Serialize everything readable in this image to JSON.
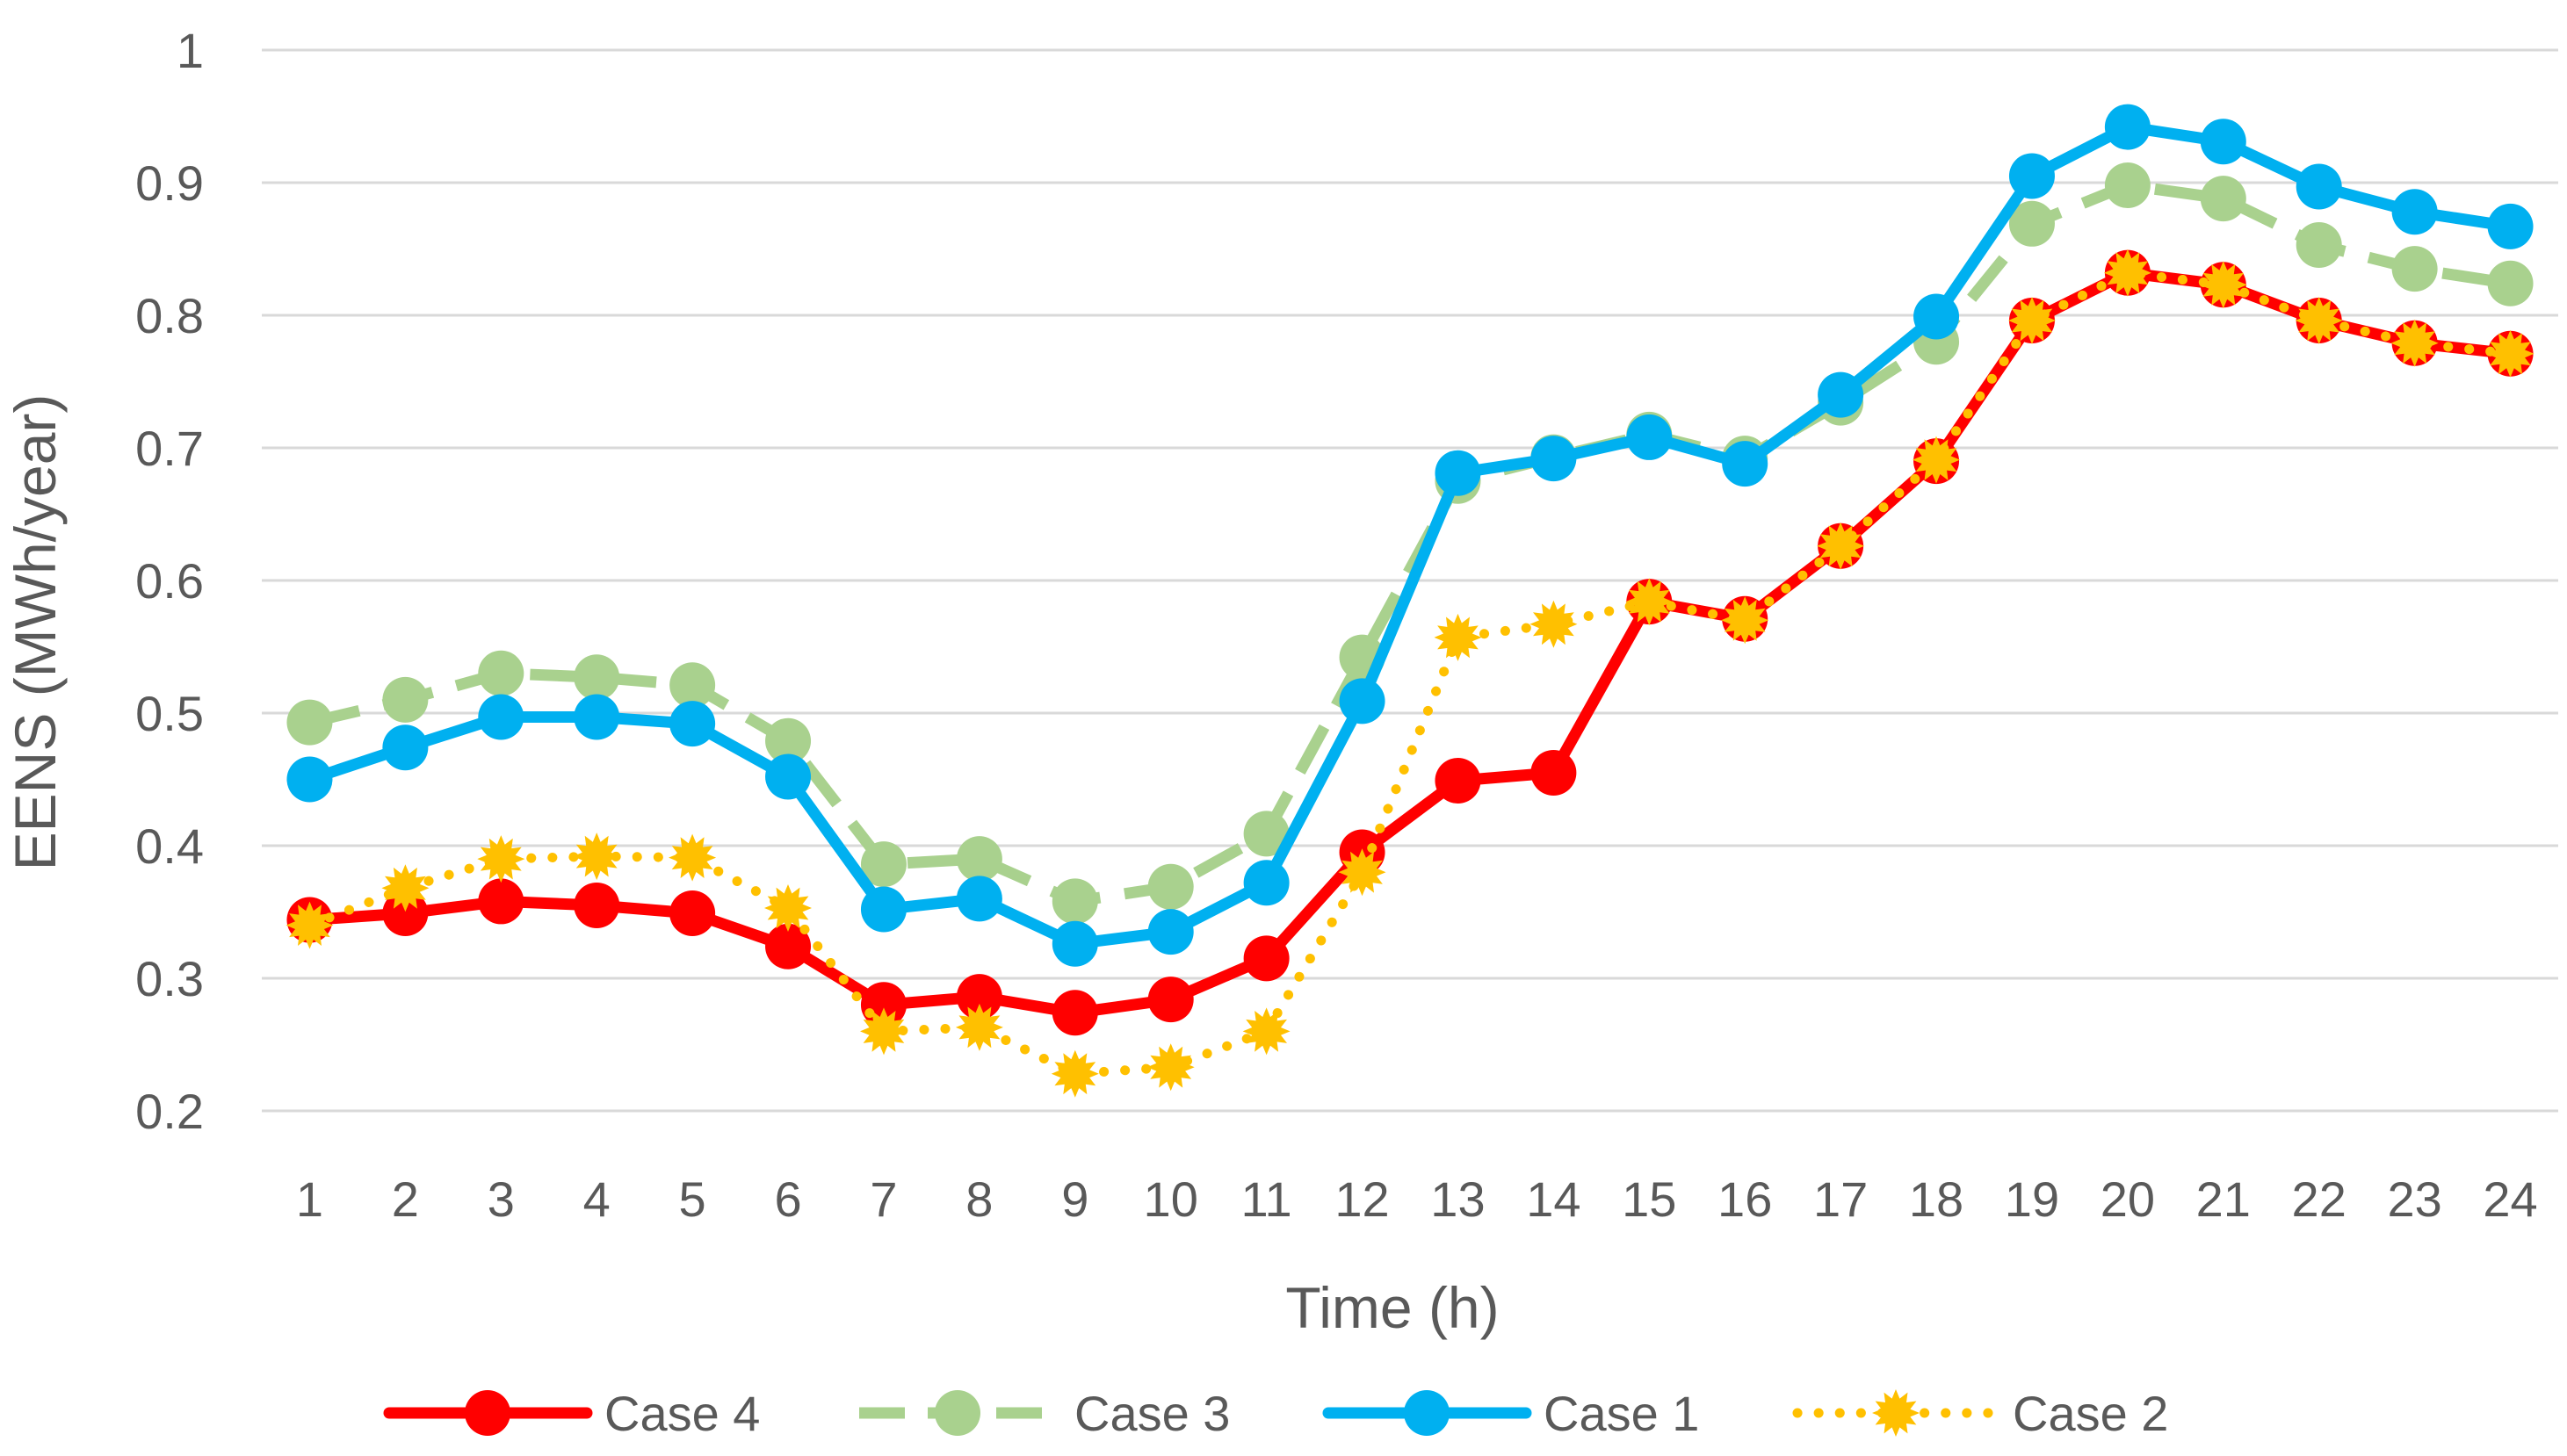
{
  "chart_data": {
    "type": "line",
    "title": "",
    "xlabel": "Time (h)",
    "ylabel": "EENS (MWh/year)",
    "ylim": [
      0.2,
      1.0
    ],
    "yticks": [
      "0.2",
      "0.3",
      "0.4",
      "0.5",
      "0.6",
      "0.7",
      "0.8",
      "0.9",
      "1"
    ],
    "ytick_values": [
      0.2,
      0.3,
      0.4,
      0.5,
      0.6,
      0.7,
      0.8,
      0.9,
      1.0
    ],
    "grid": true,
    "legend_position": "bottom",
    "categories": [
      "1",
      "2",
      "3",
      "4",
      "5",
      "6",
      "7",
      "8",
      "9",
      "10",
      "11",
      "12",
      "13",
      "14",
      "15",
      "16",
      "17",
      "18",
      "19",
      "20",
      "21",
      "22",
      "23",
      "24"
    ],
    "series": [
      {
        "name": "Case 4",
        "color": "#FF0000",
        "style": "solid",
        "values": [
          0.344,
          0.349,
          0.358,
          0.355,
          0.349,
          0.324,
          0.28,
          0.286,
          0.274,
          0.284,
          0.315,
          0.395,
          0.449,
          0.455,
          0.584,
          0.571,
          0.626,
          0.69,
          0.796,
          0.832,
          0.823,
          0.796,
          0.779,
          0.771
        ]
      },
      {
        "name": "Case 3",
        "color": "#A9D18E",
        "style": "dashed",
        "values": [
          0.493,
          0.51,
          0.53,
          0.527,
          0.521,
          0.479,
          0.386,
          0.39,
          0.358,
          0.369,
          0.409,
          0.542,
          0.675,
          0.693,
          0.71,
          0.692,
          0.734,
          0.78,
          0.869,
          0.898,
          0.888,
          0.853,
          0.835,
          0.824
        ]
      },
      {
        "name": "Case 1",
        "color": "#00B0F0",
        "style": "solid",
        "values": [
          0.45,
          0.474,
          0.497,
          0.497,
          0.492,
          0.452,
          0.352,
          0.36,
          0.326,
          0.335,
          0.372,
          0.509,
          0.681,
          0.692,
          0.708,
          0.688,
          0.74,
          0.799,
          0.905,
          0.942,
          0.931,
          0.897,
          0.878,
          0.867
        ]
      },
      {
        "name": "Case 2",
        "color": "#FFC000",
        "style": "dotted",
        "values": [
          0.34,
          0.368,
          0.39,
          0.392,
          0.391,
          0.353,
          0.26,
          0.263,
          0.228,
          0.233,
          0.26,
          0.38,
          0.557,
          0.567,
          0.584,
          0.57,
          0.626,
          0.691,
          0.796,
          0.832,
          0.823,
          0.796,
          0.779,
          0.771
        ]
      }
    ],
    "legend_order": [
      "Case 4",
      "Case 3",
      "Case 1",
      "Case 2"
    ],
    "gridline_color": "#D9D9D9"
  }
}
